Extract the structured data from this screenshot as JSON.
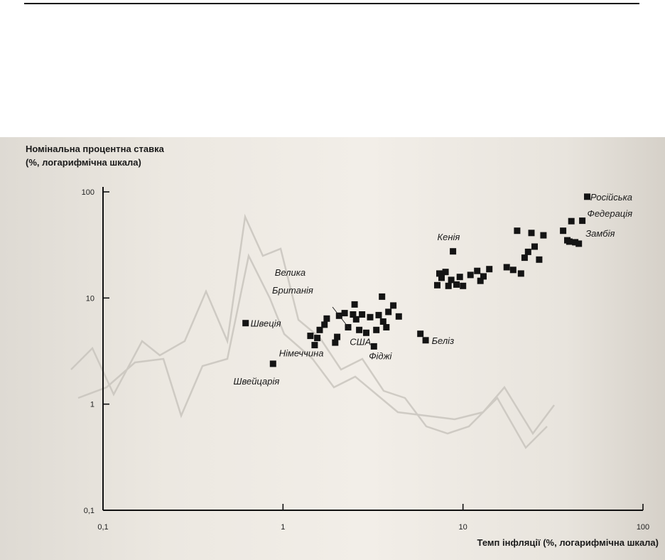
{
  "chart_data": {
    "type": "scatter",
    "title": "",
    "ylabel_line1": "Номінальна процентна ставка",
    "ylabel_line2": "(%, логарифмічна шкала)",
    "xlabel": "Темп інфляції (%, логарифмічна шкала)",
    "xscale": "log",
    "yscale": "log",
    "xlim": [
      0.1,
      100
    ],
    "ylim": [
      0.1,
      100
    ],
    "xticks": [
      {
        "value": 0.1,
        "label": "0,1"
      },
      {
        "value": 1,
        "label": "1"
      },
      {
        "value": 10,
        "label": "10"
      },
      {
        "value": 100,
        "label": "100"
      }
    ],
    "yticks": [
      {
        "value": 100,
        "label": "100"
      },
      {
        "value": 10,
        "label": "10"
      },
      {
        "value": 1,
        "label": "1"
      },
      {
        "value": 0.1,
        "label": "0,1"
      }
    ],
    "grid": false,
    "points": [
      {
        "x": 0.62,
        "y": 5.8
      },
      {
        "x": 0.88,
        "y": 2.4
      },
      {
        "x": 1.42,
        "y": 4.4
      },
      {
        "x": 1.5,
        "y": 3.6
      },
      {
        "x": 1.55,
        "y": 4.2
      },
      {
        "x": 1.6,
        "y": 5.0
      },
      {
        "x": 1.7,
        "y": 5.6
      },
      {
        "x": 1.75,
        "y": 6.4
      },
      {
        "x": 1.95,
        "y": 3.8
      },
      {
        "x": 2.0,
        "y": 4.3
      },
      {
        "x": 2.05,
        "y": 6.8
      },
      {
        "x": 2.2,
        "y": 7.2
      },
      {
        "x": 2.3,
        "y": 5.3
      },
      {
        "x": 2.45,
        "y": 7.0
      },
      {
        "x": 2.5,
        "y": 8.7
      },
      {
        "x": 2.55,
        "y": 6.3
      },
      {
        "x": 2.65,
        "y": 5.0
      },
      {
        "x": 2.75,
        "y": 7.0
      },
      {
        "x": 2.9,
        "y": 4.7
      },
      {
        "x": 3.05,
        "y": 6.6
      },
      {
        "x": 3.2,
        "y": 3.5
      },
      {
        "x": 3.3,
        "y": 5.0
      },
      {
        "x": 3.4,
        "y": 6.9
      },
      {
        "x": 3.55,
        "y": 10.3
      },
      {
        "x": 3.6,
        "y": 6.0
      },
      {
        "x": 3.75,
        "y": 5.3
      },
      {
        "x": 3.85,
        "y": 7.4
      },
      {
        "x": 4.1,
        "y": 8.5
      },
      {
        "x": 4.4,
        "y": 6.7
      },
      {
        "x": 5.8,
        "y": 4.6
      },
      {
        "x": 6.2,
        "y": 4.0
      },
      {
        "x": 7.2,
        "y": 13.2
      },
      {
        "x": 7.4,
        "y": 17.0
      },
      {
        "x": 7.6,
        "y": 15.5
      },
      {
        "x": 8.0,
        "y": 17.6
      },
      {
        "x": 8.3,
        "y": 13.0
      },
      {
        "x": 8.6,
        "y": 14.8
      },
      {
        "x": 8.8,
        "y": 27.5
      },
      {
        "x": 9.2,
        "y": 13.4
      },
      {
        "x": 9.6,
        "y": 15.8
      },
      {
        "x": 10.0,
        "y": 13.0
      },
      {
        "x": 11.0,
        "y": 16.5
      },
      {
        "x": 12.0,
        "y": 18.0
      },
      {
        "x": 12.5,
        "y": 14.5
      },
      {
        "x": 13.0,
        "y": 16.0
      },
      {
        "x": 14.0,
        "y": 18.7
      },
      {
        "x": 17.5,
        "y": 19.5
      },
      {
        "x": 19.0,
        "y": 18.4
      },
      {
        "x": 20.0,
        "y": 43.0
      },
      {
        "x": 21.0,
        "y": 17.0
      },
      {
        "x": 22.0,
        "y": 24.0
      },
      {
        "x": 23.0,
        "y": 27.2
      },
      {
        "x": 24.0,
        "y": 41.0
      },
      {
        "x": 25.0,
        "y": 30.5
      },
      {
        "x": 26.5,
        "y": 23.0
      },
      {
        "x": 28.0,
        "y": 39.0
      },
      {
        "x": 36.0,
        "y": 43.0
      },
      {
        "x": 38.0,
        "y": 35.0
      },
      {
        "x": 39.0,
        "y": 34.0
      },
      {
        "x": 40.0,
        "y": 53.0
      },
      {
        "x": 42.0,
        "y": 33.5
      },
      {
        "x": 44.0,
        "y": 32.5
      },
      {
        "x": 46.0,
        "y": 53.5
      },
      {
        "x": 49.0,
        "y": 90.0
      }
    ],
    "annotations": [
      {
        "text": "Швеція",
        "x": 0.66,
        "y": 5.8
      },
      {
        "text": "Швейцарія",
        "x": 0.53,
        "y": 1.65
      },
      {
        "text": "Велика",
        "x": 0.9,
        "y": 17.5
      },
      {
        "text": "Британія",
        "x": 0.87,
        "y": 11.9
      },
      {
        "text": "Німеччина",
        "x": 0.95,
        "y": 3.05
      },
      {
        "text": "США",
        "x": 2.35,
        "y": 3.9
      },
      {
        "text": "Фіджі",
        "x": 3.0,
        "y": 2.85
      },
      {
        "text": "Беліз",
        "x": 6.7,
        "y": 4.0
      },
      {
        "text": "Кенія",
        "x": 7.2,
        "y": 38.0
      },
      {
        "text": "Російська",
        "x": 51.0,
        "y": 90.0
      },
      {
        "text": "Федерація",
        "x": 49.0,
        "y": 63.0
      },
      {
        "text": "Замбія",
        "x": 48.0,
        "y": 41.0
      }
    ]
  }
}
